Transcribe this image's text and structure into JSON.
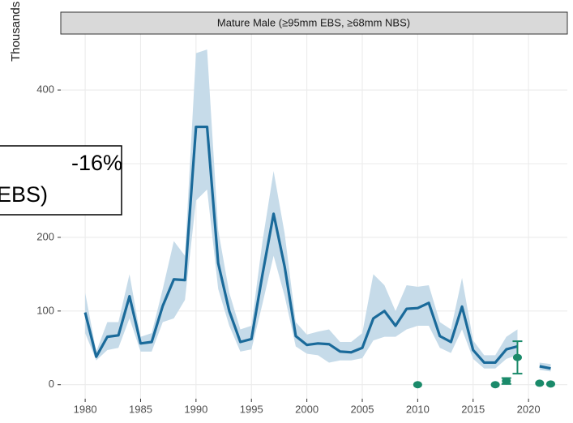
{
  "chart_data": {
    "type": "line",
    "strip_title": "Mature Male (≥95mm EBS, ≥68mm NBS)",
    "y_label": "Thousands",
    "annotations": [
      "-16%",
      "EBS)"
    ],
    "x": [
      1980,
      1981,
      1982,
      1983,
      1984,
      1985,
      1986,
      1987,
      1988,
      1989,
      1990,
      1991,
      1992,
      1993,
      1994,
      1995,
      1996,
      1997,
      1998,
      1999,
      2000,
      2001,
      2002,
      2003,
      2004,
      2005,
      2006,
      2007,
      2008,
      2009,
      2010,
      2011,
      2012,
      2013,
      2014,
      2015,
      2016,
      2017,
      2018,
      2019,
      2020,
      2021,
      2022
    ],
    "series": [
      {
        "color": "#1a6a9a",
        "values": [
          98,
          38,
          65,
          67,
          120,
          56,
          58,
          107,
          143,
          142,
          350,
          350,
          165,
          100,
          58,
          62,
          150,
          232,
          160,
          66,
          54,
          56,
          55,
          45,
          44,
          50,
          90,
          100,
          80,
          103,
          104,
          111,
          66,
          58,
          106,
          47,
          30,
          30,
          48,
          52,
          null,
          25,
          22
        ],
        "lower": [
          70,
          33,
          47,
          50,
          90,
          45,
          45,
          85,
          90,
          115,
          250,
          265,
          130,
          80,
          45,
          48,
          110,
          175,
          120,
          52,
          42,
          40,
          30,
          33,
          33,
          36,
          60,
          65,
          65,
          75,
          80,
          80,
          50,
          43,
          75,
          35,
          22,
          22,
          35,
          40,
          null,
          20,
          18
        ],
        "upper": [
          125,
          45,
          85,
          85,
          150,
          65,
          70,
          130,
          195,
          175,
          450,
          455,
          210,
          125,
          75,
          80,
          195,
          290,
          205,
          85,
          68,
          72,
          75,
          58,
          58,
          70,
          150,
          135,
          100,
          135,
          133,
          135,
          85,
          75,
          145,
          60,
          40,
          40,
          65,
          75,
          null,
          30,
          28
        ],
        "band_color": "#c6dbe9"
      }
    ],
    "survey": {
      "color": "#1a8a6a",
      "x": [
        2010,
        2017,
        2018,
        2019,
        2021,
        2022
      ],
      "values": [
        0,
        0,
        5,
        37,
        2,
        1
      ],
      "errors": [
        0,
        0,
        4,
        22,
        0,
        0
      ]
    },
    "xlim": [
      1977.8,
      2023.5
    ],
    "ylim": [
      -19,
      476
    ],
    "xticks": [
      1980,
      1985,
      1990,
      1995,
      2000,
      2005,
      2010,
      2015,
      2020
    ],
    "yticks": [
      0,
      100,
      200,
      300,
      400
    ],
    "grid": true
  }
}
